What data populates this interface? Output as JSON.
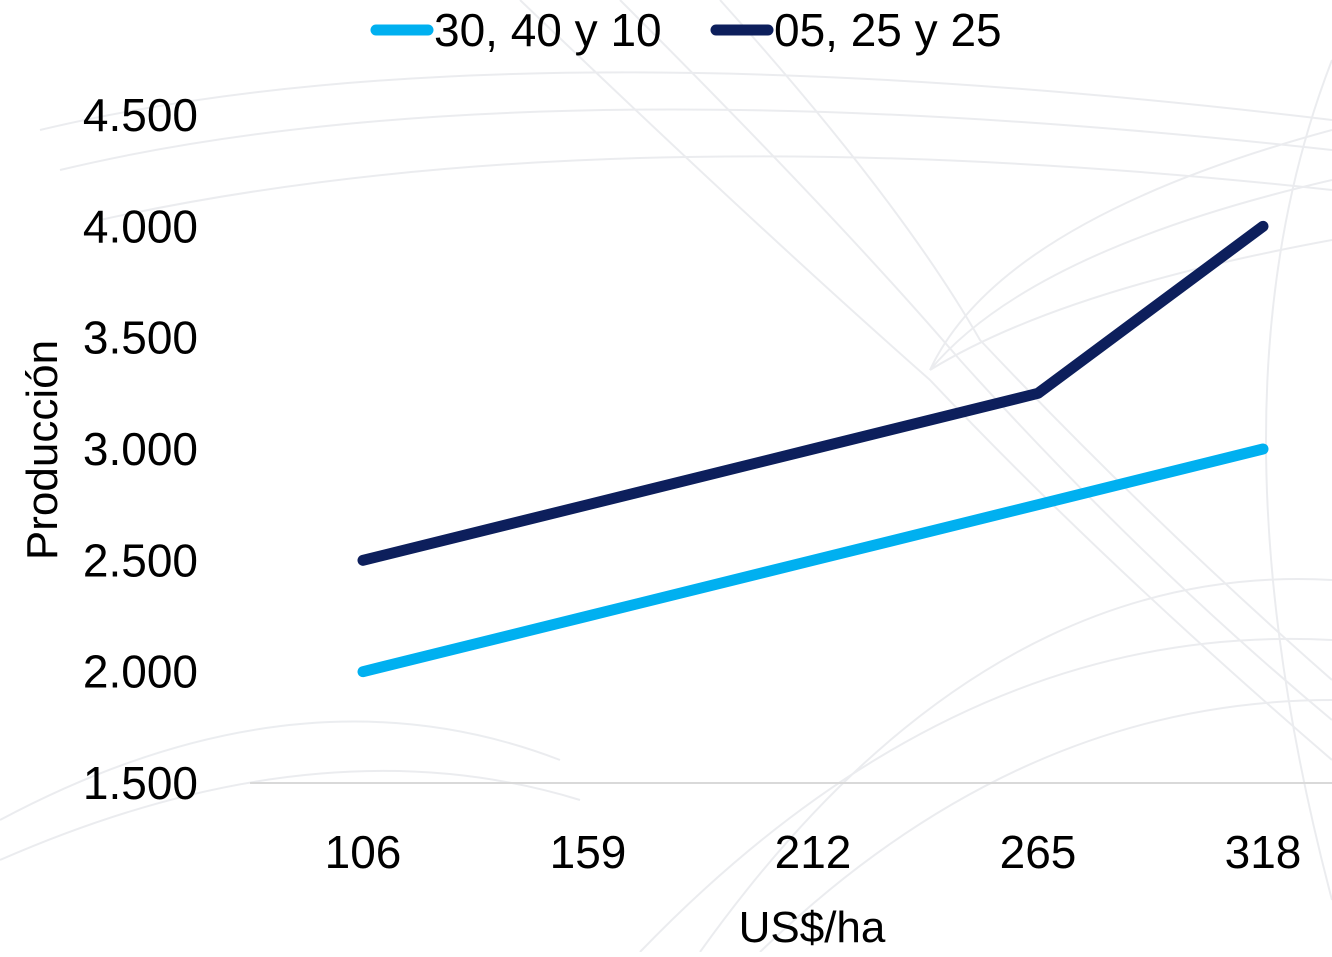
{
  "chart_data": {
    "type": "line",
    "title": "",
    "xlabel": "US$/ha",
    "ylabel": "Producción",
    "categories": [
      "106",
      "159",
      "212",
      "265",
      "318"
    ],
    "ylim": [
      1500,
      4500
    ],
    "y_ticks": [
      1500,
      2000,
      2500,
      3000,
      3500,
      4000,
      4500
    ],
    "y_tick_labels": [
      "1.500",
      "2.000",
      "2.500",
      "3.000",
      "3.500",
      "4.000",
      "4.500"
    ],
    "grid": false,
    "legend_position": "top",
    "series": [
      {
        "name": "30, 40 y 10",
        "color": "#00b0f0",
        "values": [
          2000,
          2250,
          2500,
          2750,
          3000
        ]
      },
      {
        "name": "05, 25 y 25",
        "color": "#0d1f5c",
        "values": [
          2500,
          2750,
          3000,
          3250,
          4000
        ]
      }
    ],
    "axis_color": "#d9d9d9"
  }
}
